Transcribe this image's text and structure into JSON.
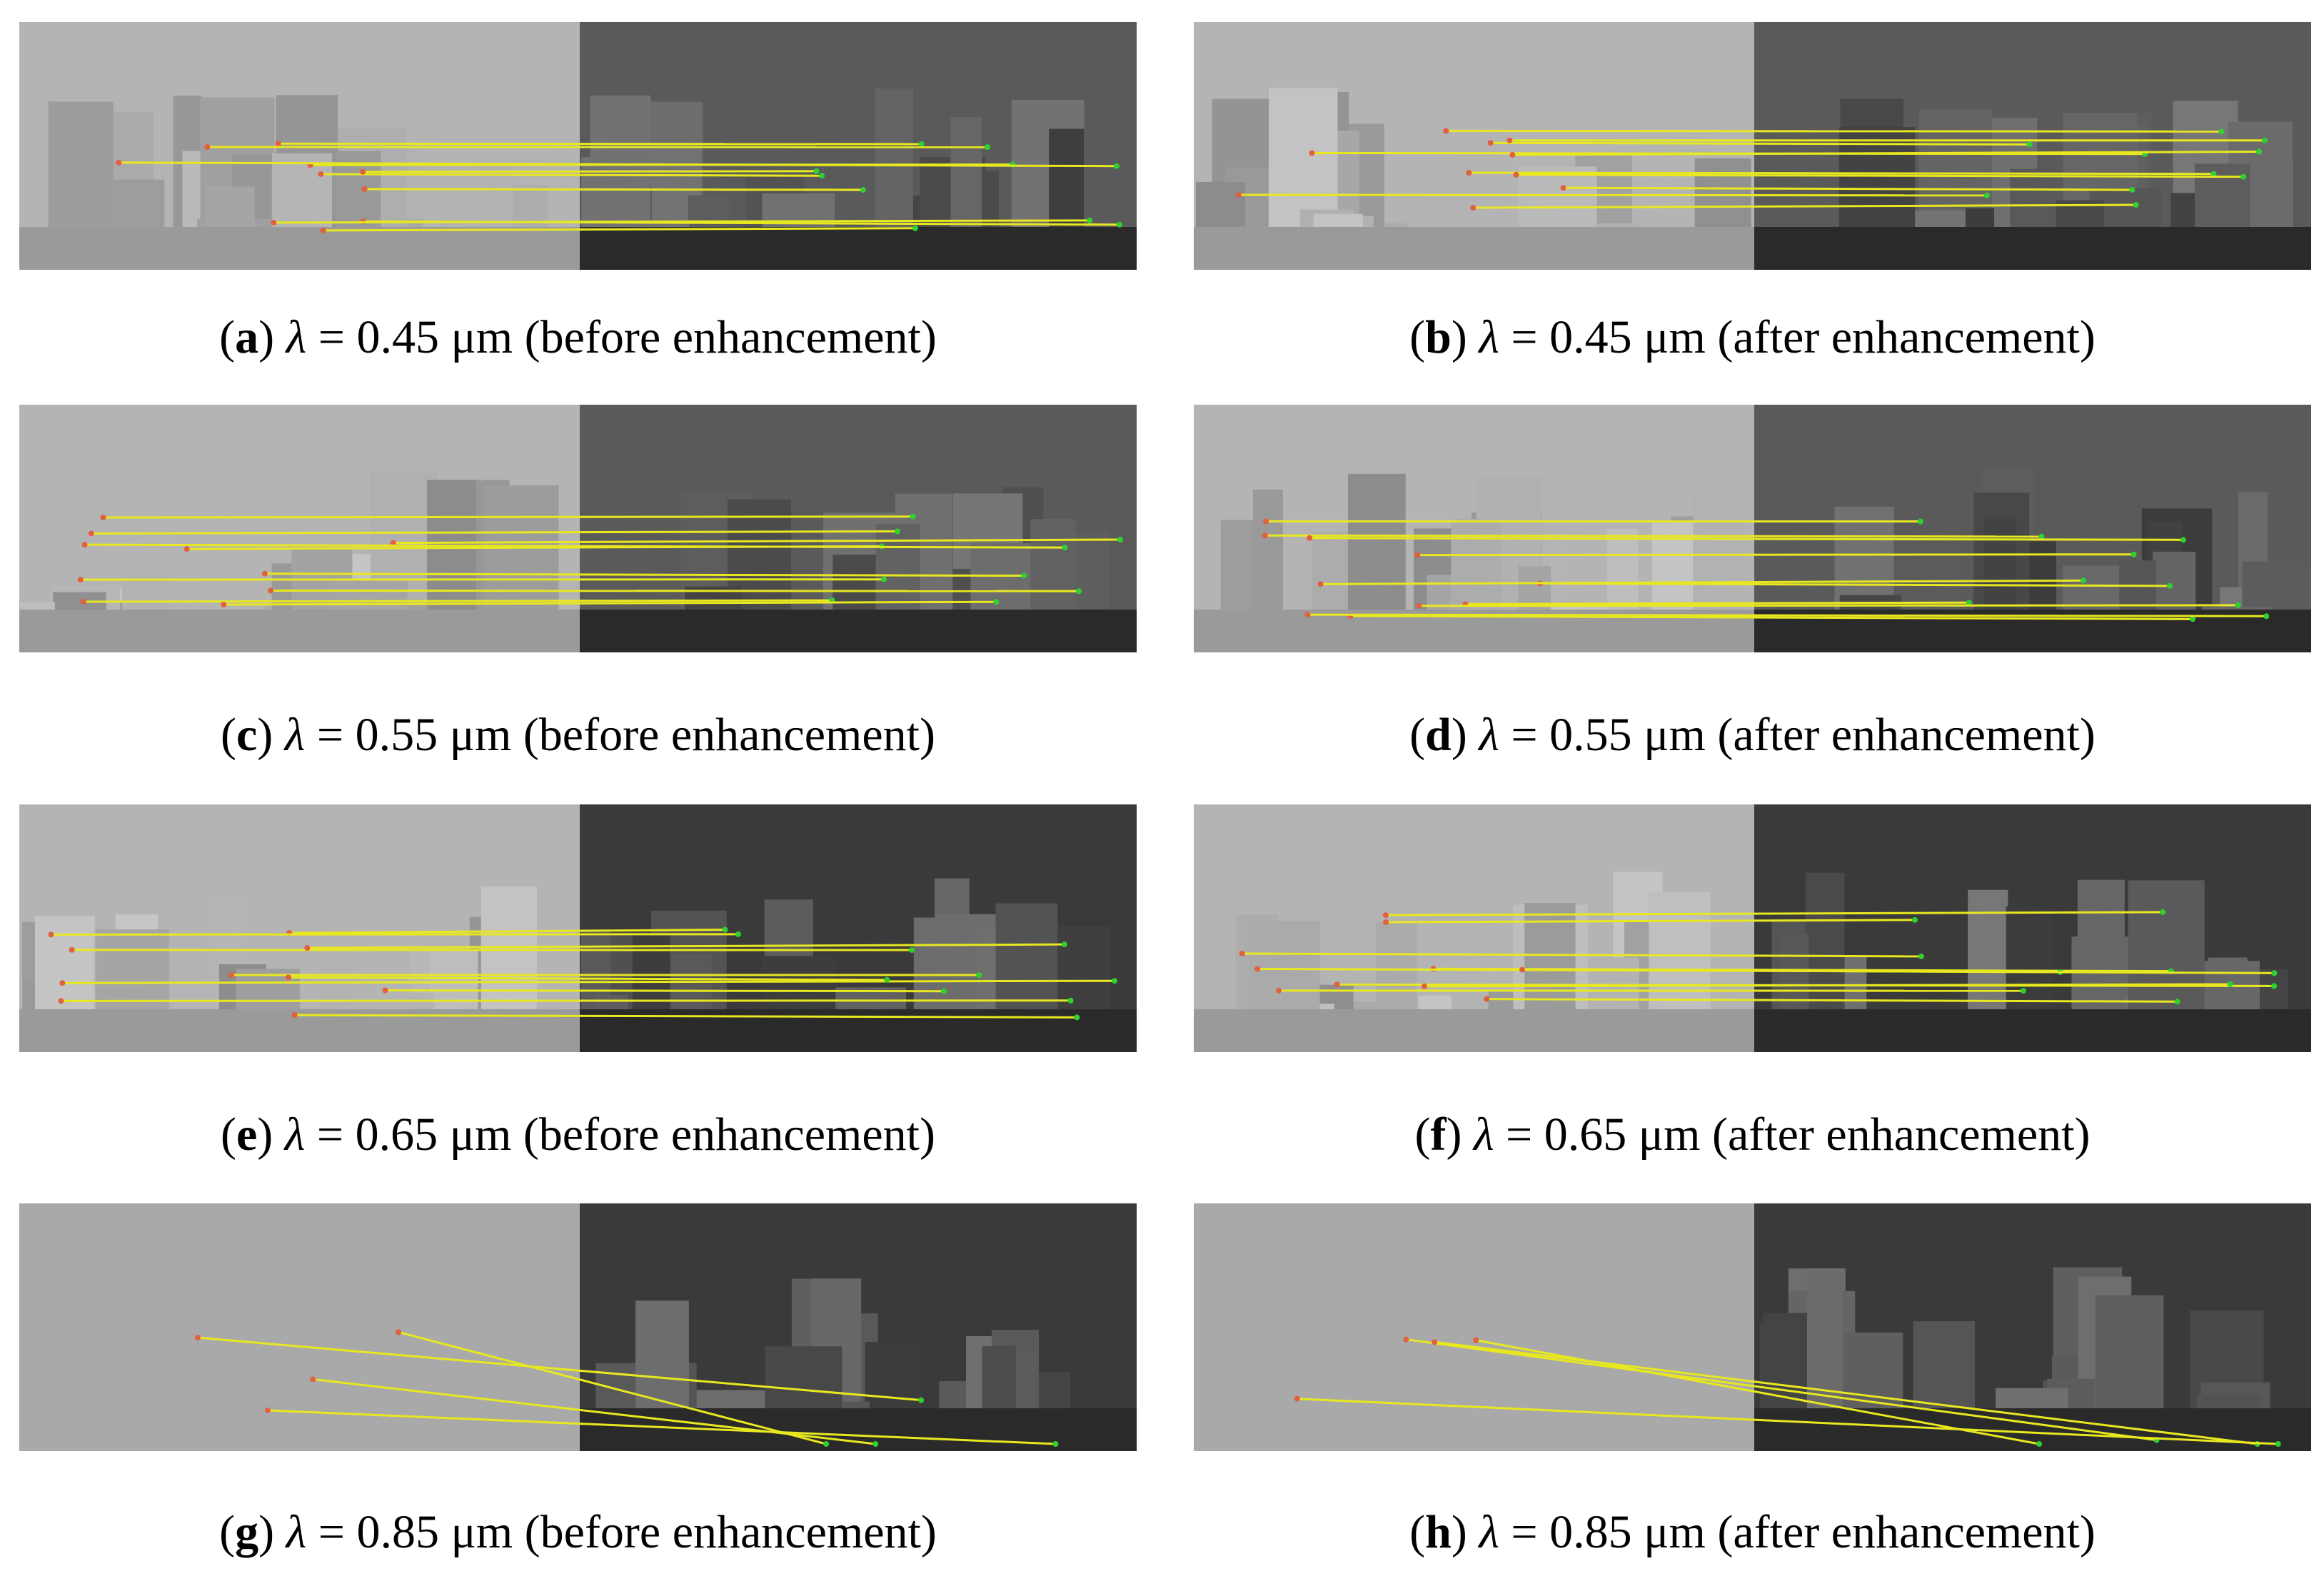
{
  "panels": [
    {
      "caption": [
        {
          "text": "("
        },
        {
          "text": "a",
          "bold": true
        },
        {
          "text": ") "
        },
        {
          "text": "λ",
          "italic": true
        },
        {
          "text": " = 0.45 μm (before enhancement)"
        }
      ]
    },
    {
      "caption": [
        {
          "text": "("
        },
        {
          "text": "b",
          "bold": true
        },
        {
          "text": ") "
        },
        {
          "text": "λ",
          "italic": true
        },
        {
          "text": " = 0.45 μm (after enhancement)"
        }
      ]
    },
    {
      "caption": [
        {
          "text": "("
        },
        {
          "text": "c",
          "bold": true
        },
        {
          "text": ") "
        },
        {
          "text": "λ",
          "italic": true
        },
        {
          "text": " = 0.55 μm (before enhancement)"
        }
      ]
    },
    {
      "caption": [
        {
          "text": "("
        },
        {
          "text": "d",
          "bold": true
        },
        {
          "text": ") "
        },
        {
          "text": "λ",
          "italic": true
        },
        {
          "text": " = 0.55 μm (after enhancement)"
        }
      ]
    },
    {
      "caption": [
        {
          "text": "("
        },
        {
          "text": "e",
          "bold": true
        },
        {
          "text": ") "
        },
        {
          "text": "λ",
          "italic": true
        },
        {
          "text": " = 0.65 μm (before enhancement)"
        }
      ]
    },
    {
      "caption": [
        {
          "text": "("
        },
        {
          "text": "f",
          "bold": true
        },
        {
          "text": ") "
        },
        {
          "text": "λ",
          "italic": true
        },
        {
          "text": " = 0.65 μm (after enhancement)"
        }
      ]
    },
    {
      "caption": [
        {
          "text": "("
        },
        {
          "text": "g",
          "bold": true
        },
        {
          "text": ") "
        },
        {
          "text": "λ",
          "italic": true
        },
        {
          "text": " = 0.85 μm (before enhancement)"
        }
      ]
    },
    {
      "caption": [
        {
          "text": "("
        },
        {
          "text": "h",
          "bold": true
        },
        {
          "text": ") "
        },
        {
          "text": "λ",
          "italic": true
        },
        {
          "text": " = 0.85 μm (after enhancement)"
        }
      ]
    }
  ]
}
